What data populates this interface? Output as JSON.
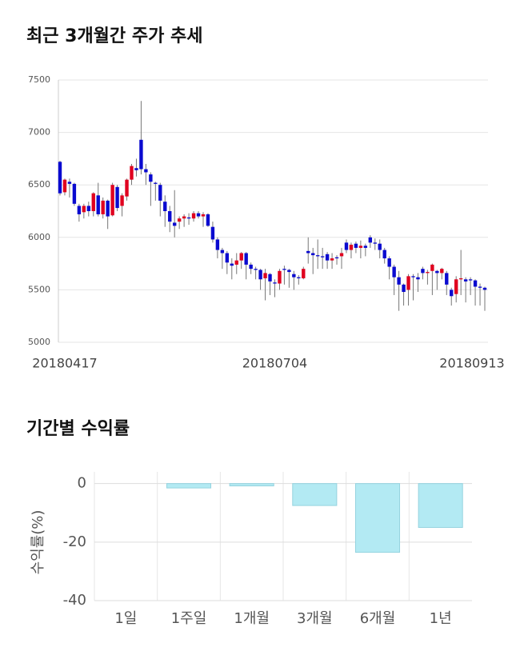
{
  "chart_data": [
    {
      "type": "candlestick",
      "title": "최근 3개월간 주가 추세",
      "categories": [
        "20180417",
        null,
        null,
        null,
        null,
        null,
        null,
        null,
        null,
        null,
        null,
        null,
        null,
        null,
        null,
        null,
        null,
        null,
        null,
        null,
        null,
        null,
        null,
        null,
        null,
        null,
        null,
        null,
        null,
        null,
        null,
        null,
        null,
        null,
        null,
        null,
        null,
        null,
        null,
        null,
        null,
        null,
        null,
        null,
        null,
        "20180704",
        null,
        null,
        null,
        null,
        null,
        null,
        null,
        null,
        null,
        null,
        null,
        null,
        null,
        null,
        null,
        null,
        null,
        null,
        null,
        null,
        null,
        null,
        null,
        null,
        null,
        null,
        null,
        null,
        null,
        null,
        null,
        null,
        null,
        null,
        null,
        null,
        null,
        null,
        null,
        null,
        null,
        null,
        null,
        "20180913"
      ],
      "open": [
        6720,
        6430,
        6530,
        6510,
        6300,
        6240,
        6300,
        6250,
        6400,
        6220,
        6350,
        6210,
        6480,
        6300,
        6390,
        6550,
        6660,
        6930,
        6650,
        6600,
        6520,
        6500,
        6340,
        6250,
        6140,
        6150,
        6180,
        6190,
        6180,
        6230,
        6200,
        6220,
        6100,
        5980,
        5880,
        5850,
        5750,
        5740,
        5780,
        5850,
        5740,
        5700,
        5690,
        5610,
        5650,
        5570,
        5560,
        5700,
        5690,
        5650,
        5620,
        5610,
        5870,
        5850,
        5830,
        5820,
        5840,
        5780,
        5810,
        5820,
        5950,
        5880,
        5940,
        5900,
        5920,
        6000,
        5950,
        5940,
        5880,
        5800,
        5720,
        5620,
        5550,
        5500,
        5630,
        5620,
        5700,
        5660,
        5680,
        5680,
        5660,
        5660,
        5500,
        5460,
        5600,
        5600,
        5600,
        5590,
        5530,
        5520
      ],
      "high": [
        6730,
        6560,
        6560,
        6520,
        6320,
        6320,
        6340,
        6430,
        6520,
        6380,
        6360,
        6520,
        6500,
        6420,
        6560,
        6700,
        6750,
        7300,
        6700,
        6620,
        6530,
        6520,
        6400,
        6300,
        6450,
        6200,
        6220,
        6230,
        6250,
        6250,
        6240,
        6230,
        6150,
        6000,
        5900,
        5870,
        5800,
        5850,
        5860,
        5860,
        5760,
        5720,
        5700,
        5700,
        5660,
        5600,
        5700,
        5730,
        5700,
        5680,
        5640,
        5720,
        6000,
        5900,
        5980,
        5900,
        5860,
        5850,
        5830,
        5900,
        5980,
        5950,
        5960,
        5970,
        5940,
        6020,
        5990,
        5980,
        5900,
        5820,
        5740,
        5680,
        5560,
        5650,
        5650,
        5660,
        5720,
        5690,
        5750,
        5690,
        5710,
        5680,
        5520,
        5630,
        5880,
        5620,
        5620,
        5600,
        5560,
        5530
      ],
      "low": [
        6400,
        6400,
        6380,
        6300,
        6150,
        6180,
        6200,
        6200,
        6200,
        6180,
        6080,
        6200,
        6250,
        6200,
        6350,
        6500,
        6580,
        6600,
        6500,
        6300,
        6350,
        6200,
        6100,
        6050,
        6000,
        6080,
        6100,
        6120,
        6150,
        6180,
        6100,
        6100,
        5950,
        5800,
        5700,
        5650,
        5600,
        5650,
        5700,
        5600,
        5650,
        5600,
        5500,
        5400,
        5450,
        5430,
        5500,
        5550,
        5520,
        5500,
        5550,
        5600,
        5750,
        5650,
        5700,
        5700,
        5700,
        5700,
        5740,
        5700,
        5850,
        5800,
        5850,
        5800,
        5820,
        5900,
        5880,
        5800,
        5750,
        5600,
        5450,
        5300,
        5350,
        5350,
        5400,
        5480,
        5600,
        5550,
        5450,
        5500,
        5600,
        5450,
        5350,
        5380,
        5450,
        5380,
        5450,
        5350,
        5350,
        5300
      ],
      "close": [
        6420,
        6550,
        6510,
        6320,
        6220,
        6300,
        6250,
        6420,
        6220,
        6350,
        6200,
        6500,
        6280,
        6400,
        6550,
        6680,
        6640,
        6650,
        6620,
        6530,
        6510,
        6350,
        6250,
        6150,
        6110,
        6180,
        6200,
        6180,
        6230,
        6200,
        6220,
        6110,
        5980,
        5880,
        5850,
        5760,
        5730,
        5780,
        5850,
        5740,
        5700,
        5690,
        5600,
        5660,
        5580,
        5560,
        5680,
        5690,
        5670,
        5620,
        5610,
        5700,
        5850,
        5830,
        5820,
        5810,
        5780,
        5800,
        5800,
        5850,
        5880,
        5930,
        5900,
        5920,
        5900,
        5950,
        5940,
        5880,
        5800,
        5720,
        5620,
        5550,
        5480,
        5630,
        5620,
        5600,
        5660,
        5670,
        5740,
        5660,
        5700,
        5550,
        5440,
        5600,
        5610,
        5580,
        5590,
        5530,
        5520,
        5500
      ],
      "up_color": "#e0001f",
      "down_color": "#0a0ad0",
      "ylim": [
        5000,
        7500
      ],
      "yticks": [
        5000,
        5500,
        6000,
        6500,
        7000,
        7500
      ],
      "grid": true
    },
    {
      "type": "bar",
      "title": "기간별 수익률",
      "ylabel": "수익률(%)",
      "categories": [
        "1일",
        "1주일",
        "1개월",
        "3개월",
        "6개월",
        "1년"
      ],
      "values": [
        0,
        -1.5,
        -0.8,
        -7.5,
        -23.5,
        -15
      ],
      "color": "#b3eaf3",
      "ylim": [
        -40,
        4
      ],
      "yticks": [
        -40,
        -20,
        0
      ],
      "grid": true
    }
  ]
}
